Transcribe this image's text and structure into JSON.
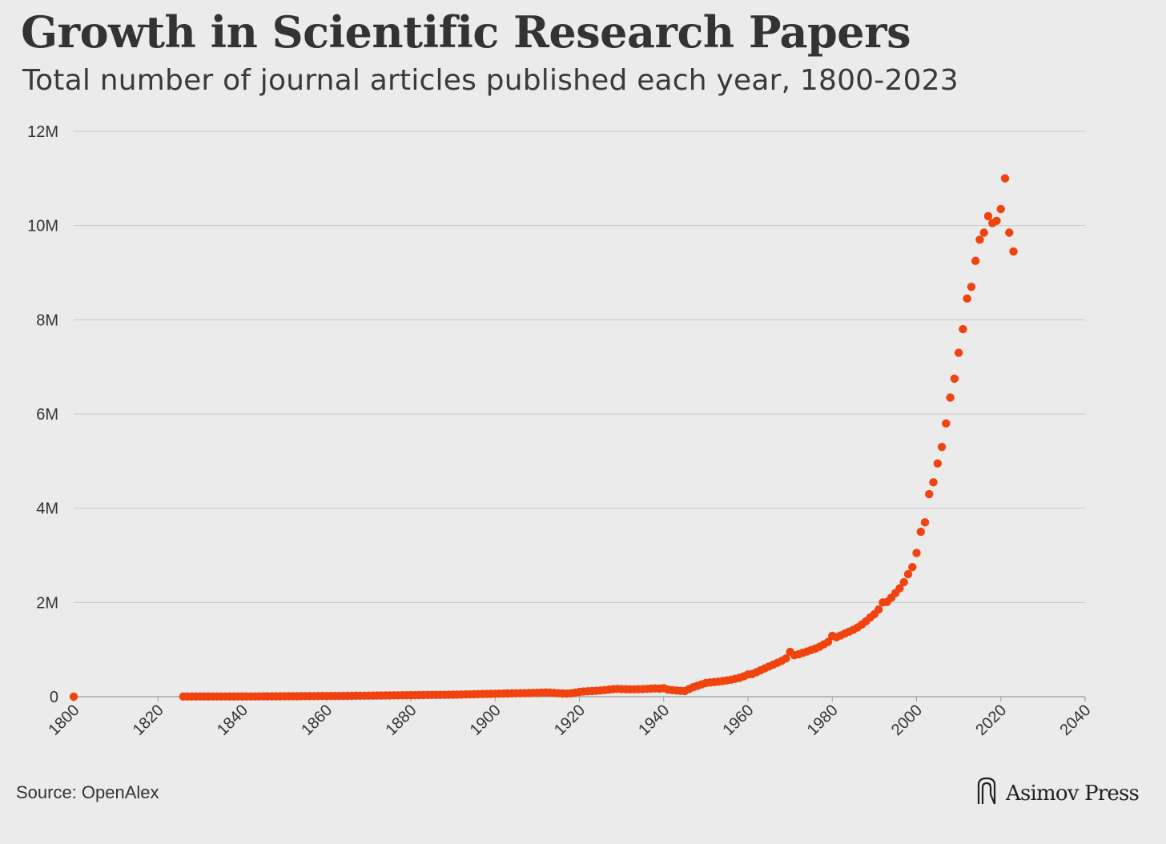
{
  "title": "Growth in Scientific Research Papers",
  "subtitle": "Total number of journal articles published each year, 1800-2023",
  "source": "Source: OpenAlex",
  "brand": {
    "name": "Asimov Press",
    "icon": "asimov-logo-icon"
  },
  "colors": {
    "point": "#f0430f",
    "grid": "#c8c8c8",
    "background": "#ebebeb",
    "axis": "#9a9a9a"
  },
  "chart_data": {
    "type": "scatter",
    "title": "Growth in Scientific Research Papers",
    "subtitle": "Total number of journal articles published each year, 1800-2023",
    "xlabel": "",
    "ylabel": "",
    "xlim": [
      1800,
      2040
    ],
    "ylim": [
      0,
      12000000
    ],
    "grid": true,
    "legend": "none",
    "x_ticks": [
      1800,
      1820,
      1840,
      1860,
      1880,
      1900,
      1920,
      1940,
      1960,
      1980,
      2000,
      2020,
      2040
    ],
    "x_tick_labels": [
      "1800",
      "1820",
      "1840",
      "1860",
      "1880",
      "1900",
      "1920",
      "1940",
      "1960",
      "1980",
      "2000",
      "2020",
      "2040"
    ],
    "y_ticks": [
      0,
      2000000,
      4000000,
      6000000,
      8000000,
      10000000,
      12000000
    ],
    "y_tick_labels": [
      "0",
      "2M",
      "4M",
      "6M",
      "8M",
      "10M",
      "12M"
    ],
    "series": [
      {
        "x": [
          1800,
          1826,
          1827,
          1828,
          1829,
          1830,
          1831,
          1832,
          1833,
          1834,
          1835,
          1836,
          1837,
          1838,
          1839,
          1840,
          1841,
          1842,
          1843,
          1844,
          1845,
          1846,
          1847,
          1848,
          1849,
          1850,
          1851,
          1852,
          1853,
          1854,
          1855,
          1856,
          1857,
          1858,
          1859,
          1860,
          1861,
          1862,
          1863,
          1864,
          1865,
          1866,
          1867,
          1868,
          1869,
          1870,
          1871,
          1872,
          1873,
          1874,
          1875,
          1876,
          1877,
          1878,
          1879,
          1880,
          1881,
          1882,
          1883,
          1884,
          1885,
          1886,
          1887,
          1888,
          1889,
          1890,
          1891,
          1892,
          1893,
          1894,
          1895,
          1896,
          1897,
          1898,
          1899,
          1900,
          1901,
          1902,
          1903,
          1904,
          1905,
          1906,
          1907,
          1908,
          1909,
          1910,
          1911,
          1912,
          1913,
          1914,
          1915,
          1916,
          1917,
          1918,
          1919,
          1920,
          1921,
          1922,
          1923,
          1924,
          1925,
          1926,
          1927,
          1928,
          1929,
          1930,
          1931,
          1932,
          1933,
          1934,
          1935,
          1936,
          1937,
          1938,
          1939,
          1940,
          1941,
          1942,
          1943,
          1944,
          1945,
          1946,
          1947,
          1948,
          1949,
          1950,
          1951,
          1952,
          1953,
          1954,
          1955,
          1956,
          1957,
          1958,
          1959,
          1960,
          1961,
          1962,
          1963,
          1964,
          1965,
          1966,
          1967,
          1968,
          1969,
          1970,
          1971,
          1972,
          1973,
          1974,
          1975,
          1976,
          1977,
          1978,
          1979,
          1980,
          1981,
          1982,
          1983,
          1984,
          1985,
          1986,
          1987,
          1988,
          1989,
          1990,
          1991,
          1992,
          1993,
          1994,
          1995,
          1996,
          1997,
          1998,
          1999,
          2000,
          2001,
          2002,
          2003,
          2004,
          2005,
          2006,
          2007,
          2008,
          2009,
          2010,
          2011,
          2012,
          2013,
          2014,
          2015,
          2016,
          2017,
          2018,
          2019,
          2020,
          2021,
          2022,
          2023
        ],
        "y": [
          0,
          2000,
          2000,
          2000,
          2000,
          3000,
          3000,
          3000,
          3000,
          3000,
          4000,
          4000,
          4000,
          4000,
          5000,
          5000,
          5000,
          6000,
          6000,
          6000,
          7000,
          7000,
          7000,
          8000,
          8000,
          9000,
          9000,
          10000,
          10000,
          11000,
          11000,
          12000,
          12000,
          13000,
          13000,
          14000,
          14000,
          15000,
          15000,
          16000,
          17000,
          18000,
          19000,
          20000,
          21000,
          22000,
          23000,
          24000,
          25000,
          26000,
          27000,
          28000,
          29000,
          30000,
          31000,
          32000,
          33000,
          34000,
          35000,
          36000,
          37000,
          38000,
          39000,
          40000,
          41000,
          42000,
          44000,
          46000,
          48000,
          50000,
          52000,
          54000,
          56000,
          58000,
          60000,
          62000,
          64000,
          66000,
          68000,
          70000,
          72000,
          74000,
          76000,
          78000,
          80000,
          82000,
          85000,
          88000,
          85000,
          80000,
          72000,
          68000,
          65000,
          70000,
          85000,
          100000,
          110000,
          115000,
          120000,
          125000,
          130000,
          140000,
          150000,
          160000,
          165000,
          160000,
          158000,
          155000,
          156000,
          158000,
          160000,
          165000,
          170000,
          175000,
          170000,
          180000,
          150000,
          140000,
          130000,
          125000,
          120000,
          160000,
          200000,
          230000,
          260000,
          290000,
          300000,
          310000,
          320000,
          330000,
          345000,
          360000,
          380000,
          400000,
          430000,
          470000,
          480000,
          520000,
          560000,
          600000,
          640000,
          680000,
          720000,
          760000,
          810000,
          950000,
          880000,
          900000,
          930000,
          960000,
          990000,
          1020000,
          1060000,
          1110000,
          1160000,
          1290000,
          1260000,
          1300000,
          1340000,
          1380000,
          1420000,
          1470000,
          1530000,
          1600000,
          1680000,
          1750000,
          1850000,
          2000000,
          2010000,
          2100000,
          2200000,
          2300000,
          2430000,
          2600000,
          2750000,
          3050000,
          3500000,
          3700000,
          4300000,
          4550000,
          4950000,
          5300000,
          5800000,
          6350000,
          6750000,
          7300000,
          7800000,
          8450000,
          8700000,
          9250000,
          9700000,
          9850000,
          10200000,
          10050000,
          10100000,
          10350000,
          11000000,
          9850000,
          9450000
        ]
      }
    ]
  }
}
